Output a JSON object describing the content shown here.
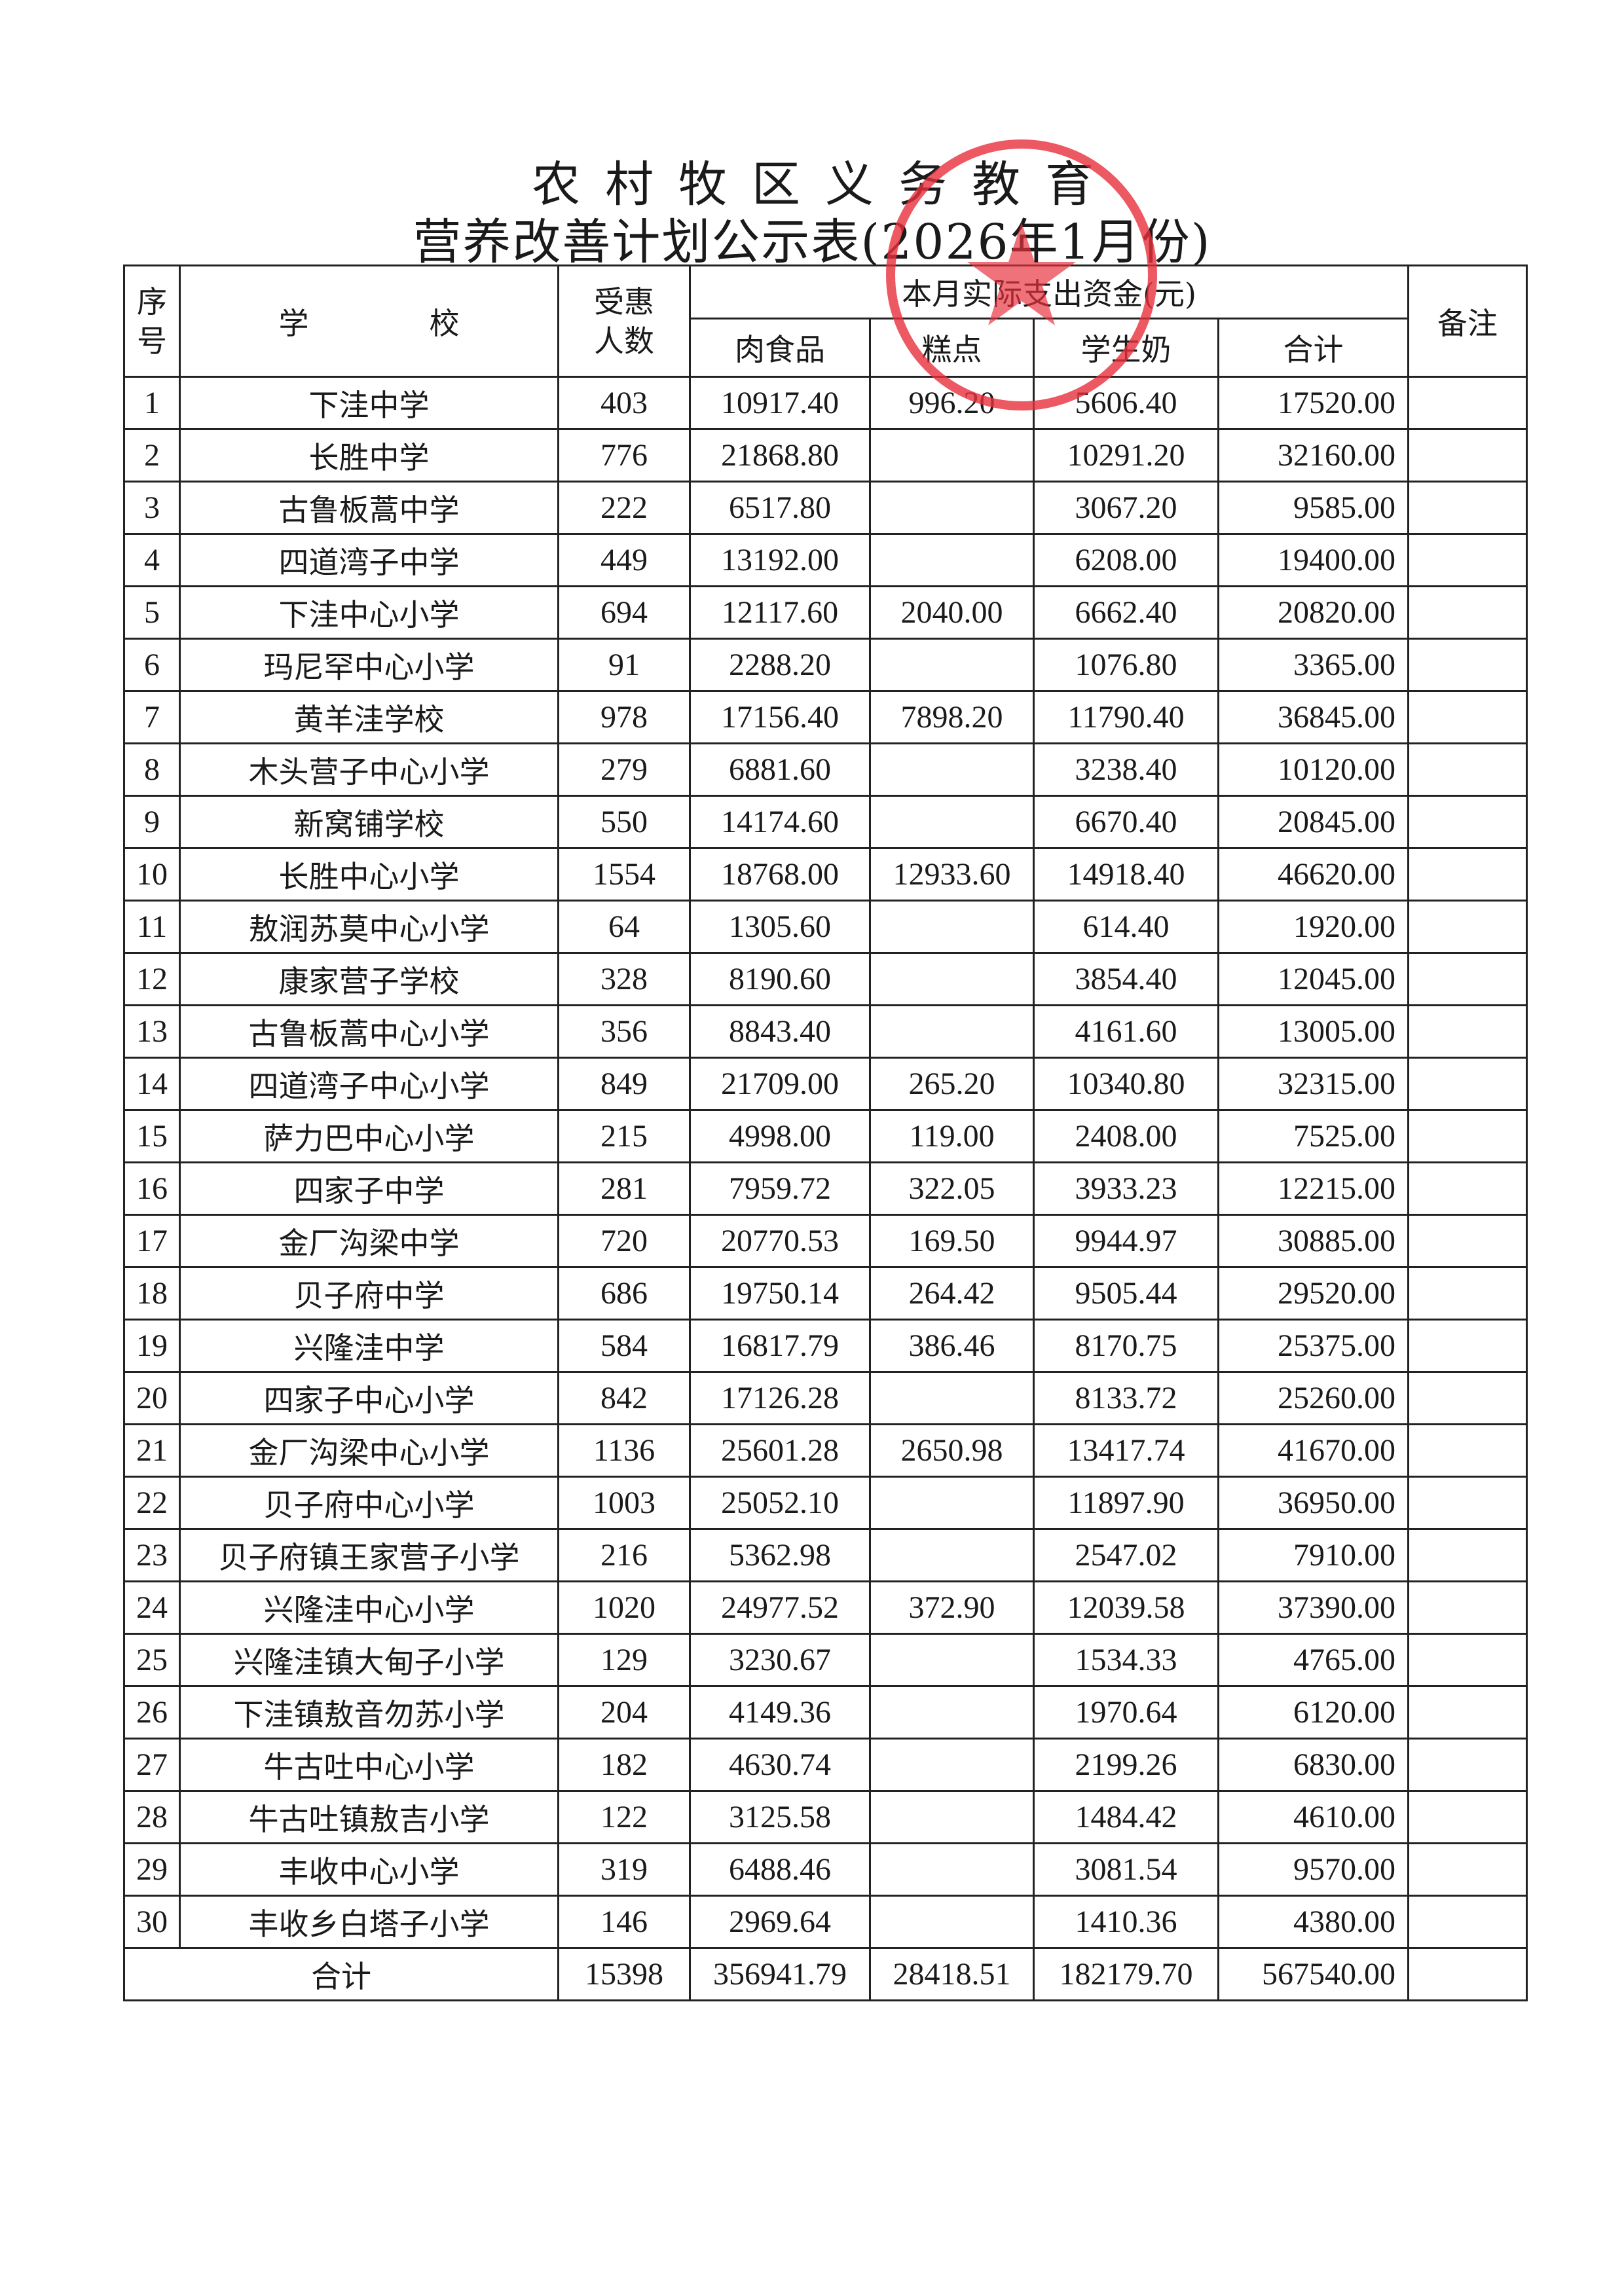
{
  "title": {
    "line1": "农村牧区义务教育",
    "line2": "营养改善计划公示表(2026年1月份)"
  },
  "columns": {
    "seq_line1": "序",
    "seq_line2": "号",
    "school": "学　　　　校",
    "count_line1": "受惠",
    "count_line2": "人数",
    "spend_group": "本月实际支出资金(元)",
    "meat": "肉食品",
    "pastry": "糕点",
    "milk": "学生奶",
    "total": "合计",
    "note": "备注"
  },
  "rows": [
    [
      "1",
      "下洼中学",
      "403",
      "10917.40",
      "996.20",
      "5606.40",
      "17520.00"
    ],
    [
      "2",
      "长胜中学",
      "776",
      "21868.80",
      "",
      "10291.20",
      "32160.00"
    ],
    [
      "3",
      "古鲁板蒿中学",
      "222",
      "6517.80",
      "",
      "3067.20",
      "9585.00"
    ],
    [
      "4",
      "四道湾子中学",
      "449",
      "13192.00",
      "",
      "6208.00",
      "19400.00"
    ],
    [
      "5",
      "下洼中心小学",
      "694",
      "12117.60",
      "2040.00",
      "6662.40",
      "20820.00"
    ],
    [
      "6",
      "玛尼罕中心小学",
      "91",
      "2288.20",
      "",
      "1076.80",
      "3365.00"
    ],
    [
      "7",
      "黄羊洼学校",
      "978",
      "17156.40",
      "7898.20",
      "11790.40",
      "36845.00"
    ],
    [
      "8",
      "木头营子中心小学",
      "279",
      "6881.60",
      "",
      "3238.40",
      "10120.00"
    ],
    [
      "9",
      "新窝铺学校",
      "550",
      "14174.60",
      "",
      "6670.40",
      "20845.00"
    ],
    [
      "10",
      "长胜中心小学",
      "1554",
      "18768.00",
      "12933.60",
      "14918.40",
      "46620.00"
    ],
    [
      "11",
      "敖润苏莫中心小学",
      "64",
      "1305.60",
      "",
      "614.40",
      "1920.00"
    ],
    [
      "12",
      "康家营子学校",
      "328",
      "8190.60",
      "",
      "3854.40",
      "12045.00"
    ],
    [
      "13",
      "古鲁板蒿中心小学",
      "356",
      "8843.40",
      "",
      "4161.60",
      "13005.00"
    ],
    [
      "14",
      "四道湾子中心小学",
      "849",
      "21709.00",
      "265.20",
      "10340.80",
      "32315.00"
    ],
    [
      "15",
      "萨力巴中心小学",
      "215",
      "4998.00",
      "119.00",
      "2408.00",
      "7525.00"
    ],
    [
      "16",
      "四家子中学",
      "281",
      "7959.72",
      "322.05",
      "3933.23",
      "12215.00"
    ],
    [
      "17",
      "金厂沟梁中学",
      "720",
      "20770.53",
      "169.50",
      "9944.97",
      "30885.00"
    ],
    [
      "18",
      "贝子府中学",
      "686",
      "19750.14",
      "264.42",
      "9505.44",
      "29520.00"
    ],
    [
      "19",
      "兴隆洼中学",
      "584",
      "16817.79",
      "386.46",
      "8170.75",
      "25375.00"
    ],
    [
      "20",
      "四家子中心小学",
      "842",
      "17126.28",
      "",
      "8133.72",
      "25260.00"
    ],
    [
      "21",
      "金厂沟梁中心小学",
      "1136",
      "25601.28",
      "2650.98",
      "13417.74",
      "41670.00"
    ],
    [
      "22",
      "贝子府中心小学",
      "1003",
      "25052.10",
      "",
      "11897.90",
      "36950.00"
    ],
    [
      "23",
      "贝子府镇王家营子小学",
      "216",
      "5362.98",
      "",
      "2547.02",
      "7910.00"
    ],
    [
      "24",
      "兴隆洼中心小学",
      "1020",
      "24977.52",
      "372.90",
      "12039.58",
      "37390.00"
    ],
    [
      "25",
      "兴隆洼镇大甸子小学",
      "129",
      "3230.67",
      "",
      "1534.33",
      "4765.00"
    ],
    [
      "26",
      "下洼镇敖音勿苏小学",
      "204",
      "4149.36",
      "",
      "1970.64",
      "6120.00"
    ],
    [
      "27",
      "牛古吐中心小学",
      "182",
      "4630.74",
      "",
      "2199.26",
      "6830.00"
    ],
    [
      "28",
      "牛古吐镇敖吉小学",
      "122",
      "3125.58",
      "",
      "1484.42",
      "4610.00"
    ],
    [
      "29",
      "丰收中心小学",
      "319",
      "6488.46",
      "",
      "3081.54",
      "9570.00"
    ],
    [
      "30",
      "丰收乡白塔子小学",
      "146",
      "2969.64",
      "",
      "1410.36",
      "4380.00"
    ]
  ],
  "totals": {
    "label": "合计",
    "count": "15398",
    "meat": "356941.79",
    "pastry": "28418.51",
    "milk": "182179.70",
    "total": "567540.00"
  },
  "stamp": {
    "color": "#e8303c",
    "icon": "official-seal-star"
  }
}
